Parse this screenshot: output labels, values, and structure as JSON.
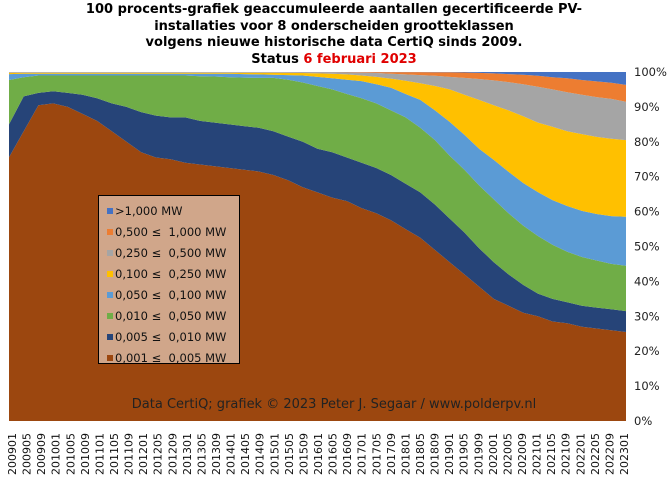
{
  "title": {
    "lines": [
      "100 procents-grafiek geaccumuleerde aantallen gecertificeerde PV-",
      "installaties voor 8 onderscheiden grootteklassen",
      "volgens nieuwe historische data CertiQ sinds 2009."
    ],
    "status_prefix": "Status",
    "status_date": "6 februari 2023"
  },
  "credit": "Data CertiQ; grafiek © 2023 Peter J. Segaar / www.polderpv.nl",
  "chart_data": {
    "type": "area",
    "stacking": "percent",
    "note": "values are cumulative stacked tops (%) of each class, bottom to top",
    "x": [
      "200901",
      "200905",
      "200909",
      "201001",
      "201005",
      "201009",
      "201101",
      "201105",
      "201109",
      "201201",
      "201205",
      "201209",
      "201301",
      "201305",
      "201309",
      "201401",
      "201405",
      "201409",
      "201501",
      "201505",
      "201509",
      "201601",
      "201605",
      "201609",
      "201701",
      "201705",
      "201709",
      "201801",
      "201805",
      "201809",
      "201901",
      "201905",
      "201909",
      "202001",
      "202005",
      "202009",
      "202101",
      "202105",
      "202109",
      "202201",
      "202205",
      "202209",
      "202301"
    ],
    "ylim": [
      0,
      100
    ],
    "yticks": [
      "0%",
      "10%",
      "20%",
      "30%",
      "40%",
      "50%",
      "60%",
      "70%",
      "80%",
      "90%",
      "100%"
    ],
    "legend_position": "center-left",
    "series": [
      {
        "name": "0,001 ≤  0,005 MW",
        "color": "#9c470f",
        "cumulative": [
          75.6,
          83,
          90.5,
          91,
          90,
          88,
          86,
          83,
          80,
          77,
          75.5,
          75,
          74,
          73.5,
          73,
          72.5,
          72,
          71.5,
          70.5,
          69,
          67,
          65.5,
          64,
          63,
          61,
          59.5,
          57.5,
          55,
          52.5,
          49,
          45.5,
          42,
          38.5,
          35,
          33,
          31,
          30,
          28.5,
          28,
          27,
          26.5,
          26,
          25.5
        ]
      },
      {
        "name": "0,005 ≤  0,010 MW",
        "color": "#264478",
        "cumulative": [
          85,
          93,
          94,
          94.5,
          94,
          93.5,
          92.5,
          91,
          90,
          88.5,
          87.5,
          87,
          87,
          86,
          85.5,
          85,
          84.5,
          84,
          83,
          81.5,
          80,
          78,
          77,
          75.5,
          74,
          72.5,
          70.5,
          68,
          65.5,
          62,
          58,
          54,
          49.5,
          45.5,
          42,
          39,
          36.5,
          35,
          34,
          33,
          32.5,
          32,
          31.5
        ]
      },
      {
        "name": "0,010 ≤  0,050 MW",
        "color": "#70ad47",
        "cumulative": [
          97.7,
          98.5,
          99,
          99,
          99,
          99,
          99,
          99,
          99,
          99,
          99,
          99,
          99,
          98.8,
          98.7,
          98.5,
          98.4,
          98.3,
          98.3,
          97.8,
          97,
          96,
          95,
          93.7,
          92.5,
          91,
          89,
          87,
          84,
          80.5,
          76,
          72,
          67.5,
          63.5,
          59.5,
          56,
          53,
          50.5,
          48.5,
          47,
          46,
          45,
          44.5
        ]
      },
      {
        "name": "0,050 ≤  0,100 MW",
        "color": "#5b9bd5",
        "cumulative": [
          99.4,
          99.5,
          99.5,
          99.5,
          99.5,
          99.5,
          99.5,
          99.5,
          99.5,
          99.5,
          99.5,
          99.5,
          99.5,
          99.5,
          99.5,
          99.5,
          99.4,
          99.3,
          99.2,
          99.1,
          99,
          98.6,
          98.2,
          97.8,
          97.4,
          96.5,
          95.5,
          93.7,
          92,
          89,
          85.7,
          82,
          78,
          74.8,
          71.4,
          68.2,
          65.6,
          63.3,
          61.6,
          60.2,
          59.3,
          58.7,
          58.5
        ]
      },
      {
        "name": "0,100 ≤  0,250 MW",
        "color": "#ffc000",
        "cumulative": [
          99.8,
          99.8,
          99.8,
          99.8,
          99.8,
          99.8,
          99.8,
          99.8,
          99.8,
          99.8,
          99.8,
          99.8,
          99.8,
          99.8,
          99.8,
          99.8,
          99.8,
          99.8,
          99.8,
          99.75,
          99.7,
          99.6,
          99.5,
          99.3,
          99,
          98.6,
          98.1,
          97.5,
          96.8,
          96,
          95,
          93.5,
          92,
          90.5,
          89,
          87.3,
          85.5,
          84.3,
          83,
          82.2,
          81.4,
          80.9,
          80.5
        ]
      },
      {
        "name": "0,250 ≤  0,500 MW",
        "color": "#a5a5a5",
        "cumulative": [
          99.95,
          99.95,
          99.95,
          99.95,
          99.95,
          99.95,
          99.95,
          99.95,
          99.95,
          99.95,
          99.95,
          99.95,
          99.95,
          99.95,
          99.95,
          99.95,
          99.95,
          99.95,
          99.95,
          99.95,
          99.95,
          99.9,
          99.9,
          99.85,
          99.8,
          99.7,
          99.5,
          99.3,
          99.1,
          98.9,
          98.6,
          98.3,
          98,
          97.6,
          97.1,
          96.5,
          95.8,
          95,
          94.2,
          93.5,
          92.8,
          92.3,
          91.5
        ]
      },
      {
        "name": "0,500 ≤  1,000 MW",
        "color": "#ed7d31",
        "cumulative": [
          99.98,
          99.98,
          99.98,
          99.98,
          99.98,
          99.98,
          99.98,
          99.98,
          99.98,
          99.98,
          99.98,
          99.98,
          99.98,
          99.98,
          99.98,
          99.98,
          99.98,
          99.98,
          99.98,
          99.98,
          99.98,
          99.98,
          99.98,
          99.98,
          99.98,
          99.98,
          99.98,
          99.98,
          99.97,
          99.95,
          99.9,
          99.85,
          99.75,
          99.6,
          99.4,
          99.2,
          98.9,
          98.5,
          98.2,
          97.7,
          97.3,
          96.9,
          96.3
        ]
      },
      {
        "name": ">1,000 MW",
        "color": "#4472c4",
        "cumulative": [
          100,
          100,
          100,
          100,
          100,
          100,
          100,
          100,
          100,
          100,
          100,
          100,
          100,
          100,
          100,
          100,
          100,
          100,
          100,
          100,
          100,
          100,
          100,
          100,
          100,
          100,
          100,
          100,
          100,
          100,
          100,
          100,
          100,
          100,
          100,
          100,
          100,
          100,
          100,
          100,
          100,
          100,
          100
        ]
      }
    ]
  }
}
